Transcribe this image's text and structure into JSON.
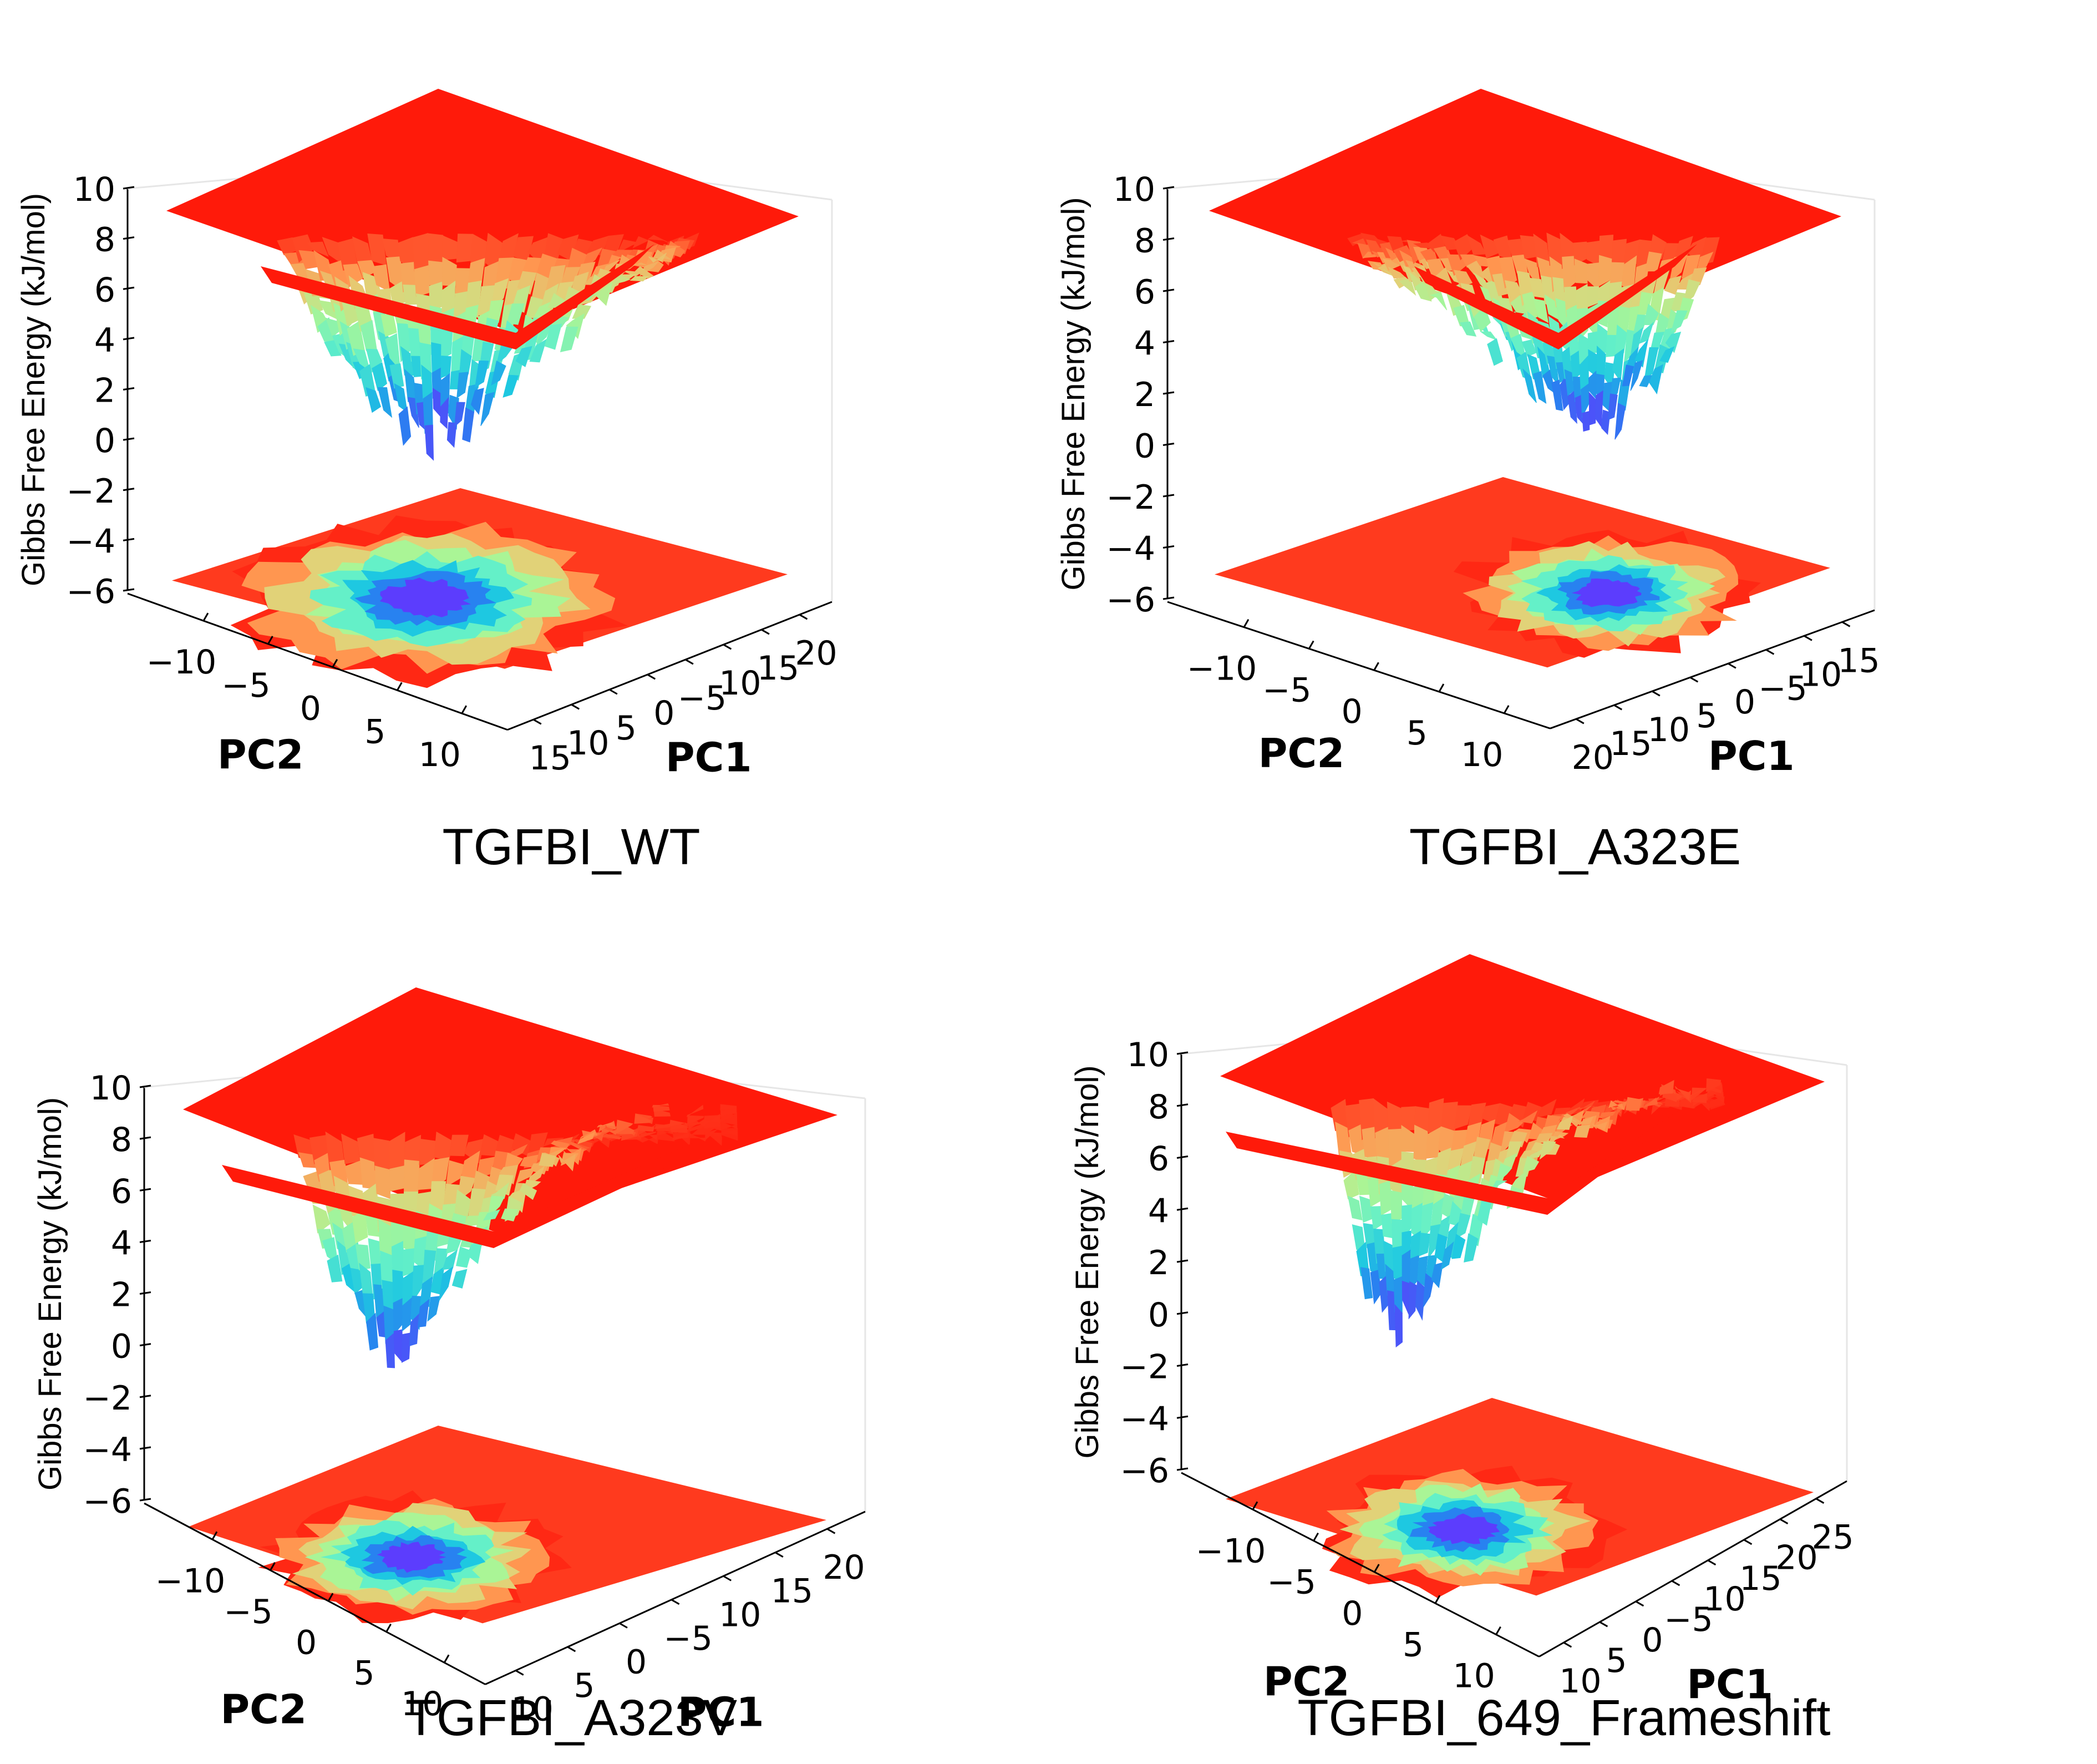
{
  "figure": {
    "panels": [
      {
        "id": "wt",
        "title": "TGFBI_WT"
      },
      {
        "id": "a323e",
        "title": "TGFBI_A323E"
      },
      {
        "id": "a323v",
        "title": "TGFBI_A323V"
      },
      {
        "id": "fs649",
        "title": "TGFBI_649_Frameshift"
      }
    ]
  },
  "chart_data": [
    {
      "type": "surface3d",
      "title": "TGFBI_WT",
      "xlabel": "PC2",
      "ylabel": "PC1",
      "zlabel": "Gibbs Free Energy (kJ/mol)",
      "zlim": [
        -6,
        10
      ],
      "z_ticks": [
        "10",
        "8",
        "6",
        "4",
        "2",
        "0",
        "−2",
        "−4",
        "−6"
      ],
      "pc2_ticks": [
        "−10",
        "−5",
        "0",
        "5",
        "10"
      ],
      "pc1_ticks": [
        "15",
        "10",
        "5",
        "0",
        "−5",
        "10",
        "15",
        "20"
      ],
      "colormap": "rainbow",
      "surface_cap": 10,
      "minima": [
        {
          "pc1": 0,
          "pc2": -3,
          "energy": 0.0,
          "depth": "single deep basin"
        }
      ],
      "secondary_basins": [
        {
          "pc1": -10,
          "pc2": -5,
          "energy": 4.5
        }
      ],
      "projection_plane_z": -6
    },
    {
      "type": "surface3d",
      "title": "TGFBI_A323E",
      "xlabel": "PC2",
      "ylabel": "PC1",
      "zlabel": "Gibbs Free Energy (kJ/mol)",
      "zlim": [
        -6,
        10
      ],
      "z_ticks": [
        "10",
        "8",
        "6",
        "4",
        "2",
        "0",
        "−2",
        "−4",
        "−6"
      ],
      "pc2_ticks": [
        "−10",
        "−5",
        "0",
        "5",
        "10"
      ],
      "pc1_ticks": [
        "20",
        "15",
        "10",
        "5",
        "0",
        "−5",
        "10",
        "15"
      ],
      "colormap": "rainbow",
      "surface_cap": 10,
      "minima": [
        {
          "pc1": -3,
          "pc2": 0,
          "energy": 0.8
        },
        {
          "pc1": -8,
          "pc2": -3,
          "energy": 0.8
        }
      ],
      "projection_plane_z": -6
    },
    {
      "type": "surface3d",
      "title": "TGFBI_A323V",
      "xlabel": "PC2",
      "ylabel": "PC1",
      "zlabel": "Gibbs Free Energy (kJ/mol)",
      "zlim": [
        -6,
        10
      ],
      "z_ticks": [
        "10",
        "8",
        "6",
        "4",
        "2",
        "0",
        "−2",
        "−4",
        "−6"
      ],
      "pc2_ticks": [
        "−10",
        "−5",
        "0",
        "5",
        "10"
      ],
      "pc1_ticks": [
        "10",
        "5",
        "0",
        "−5",
        "10",
        "15",
        "20"
      ],
      "colormap": "rainbow",
      "surface_cap": 10,
      "minima": [
        {
          "pc1": 5,
          "pc2": -8,
          "energy": -0.5
        }
      ],
      "secondary_basins": [
        {
          "pc1": -5,
          "pc2": -3,
          "energy": 3.5
        }
      ],
      "projection_plane_z": -6
    },
    {
      "type": "surface3d",
      "title": "TGFBI_649_Frameshift",
      "xlabel": "PC2",
      "ylabel": "PC1",
      "zlabel": "Gibbs Free Energy (kJ/mol)",
      "zlim": [
        -6,
        10
      ],
      "z_ticks": [
        "10",
        "8",
        "6",
        "4",
        "2",
        "0",
        "−2",
        "−4",
        "−6"
      ],
      "pc2_ticks": [
        "−10",
        "−5",
        "0",
        "5",
        "10"
      ],
      "pc1_ticks": [
        "10",
        "5",
        "0",
        "−5",
        "10",
        "15",
        "20",
        "25"
      ],
      "colormap": "rainbow",
      "surface_cap": 10,
      "minima": [
        {
          "pc1": 5,
          "pc2": -9,
          "energy": -0.3
        },
        {
          "pc1": 3,
          "pc2": -6,
          "energy": -0.3
        }
      ],
      "secondary_basins": [
        {
          "pc1": -5,
          "pc2": -2,
          "energy": 4.0
        }
      ],
      "projection_plane_z": -6
    }
  ]
}
